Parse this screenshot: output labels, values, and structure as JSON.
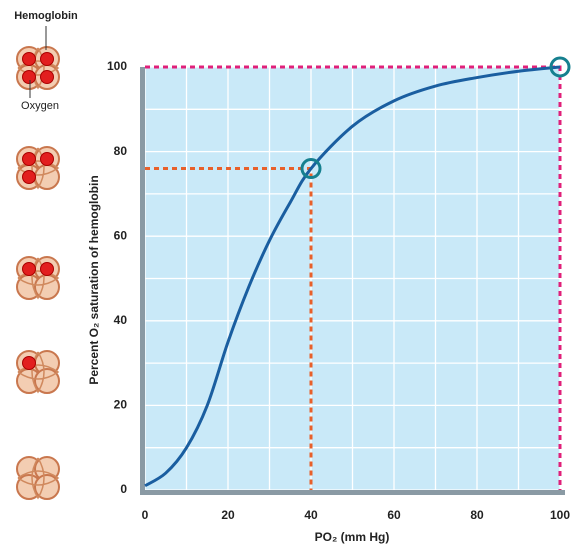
{
  "chart_data": {
    "type": "line",
    "x_label": "PO₂ (mm Hg)",
    "y_label": "Percent O₂ saturation of hemoglobin",
    "annotations": [
      "Hemoglobin",
      "Oxygen"
    ],
    "x": [
      0,
      5,
      10,
      15,
      20,
      25,
      30,
      35,
      40,
      50,
      60,
      70,
      80,
      90,
      100
    ],
    "values": [
      1,
      4,
      10,
      20,
      35,
      48,
      59,
      68,
      76,
      86,
      92,
      95.5,
      97.5,
      99,
      100
    ],
    "color": "#1a5ea0",
    "highlights": [
      {
        "x": 40,
        "y": 76,
        "color": "#e8602a"
      },
      {
        "x": 100,
        "y": 100,
        "color": "#e0207a"
      }
    ],
    "xlim": [
      0,
      100
    ],
    "ylim": [
      0,
      100
    ],
    "xticks": [
      0,
      20,
      40,
      60,
      80,
      100
    ],
    "yticks": [
      0,
      20,
      40,
      60,
      80,
      100
    ],
    "grid": true
  }
}
